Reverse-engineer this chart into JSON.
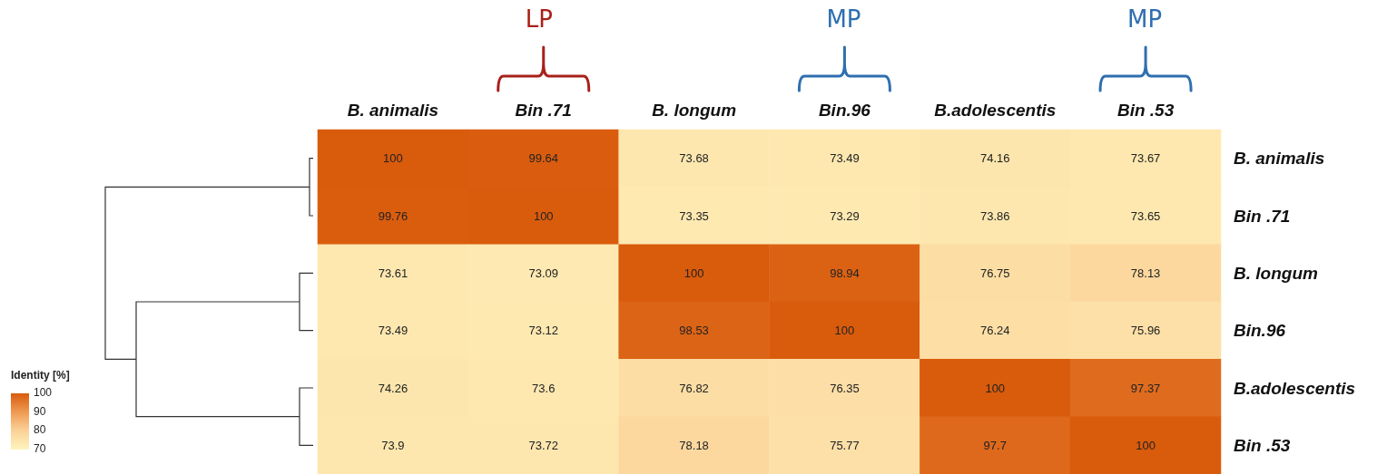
{
  "chart_data": {
    "type": "heatmap",
    "categories": [
      "B. animalis",
      "Bin .71",
      "B. longum",
      "Bin.96",
      "B.adolescentis",
      "Bin .53"
    ],
    "y_categories": [
      "B. animalis",
      "Bin .71",
      "B. longum",
      "Bin.96",
      "B.adolescentis",
      "Bin .53"
    ],
    "cells": [
      [
        100,
        99.64,
        73.68,
        73.49,
        74.16,
        73.67
      ],
      [
        99.76,
        100,
        73.35,
        73.29,
        73.86,
        73.65
      ],
      [
        73.61,
        73.09,
        100,
        98.94,
        76.75,
        78.13
      ],
      [
        73.49,
        73.12,
        98.53,
        100,
        76.24,
        75.96
      ],
      [
        74.26,
        73.6,
        76.82,
        76.35,
        100,
        97.37
      ],
      [
        73.9,
        73.72,
        78.18,
        75.77,
        97.7,
        100
      ]
    ],
    "data_labels": true,
    "clabel": "Identity [%]",
    "clim": [
      70,
      100
    ],
    "cticks": [
      70,
      80,
      90,
      100
    ],
    "annotations": [
      "LP",
      "MP",
      "MP"
    ]
  }
}
